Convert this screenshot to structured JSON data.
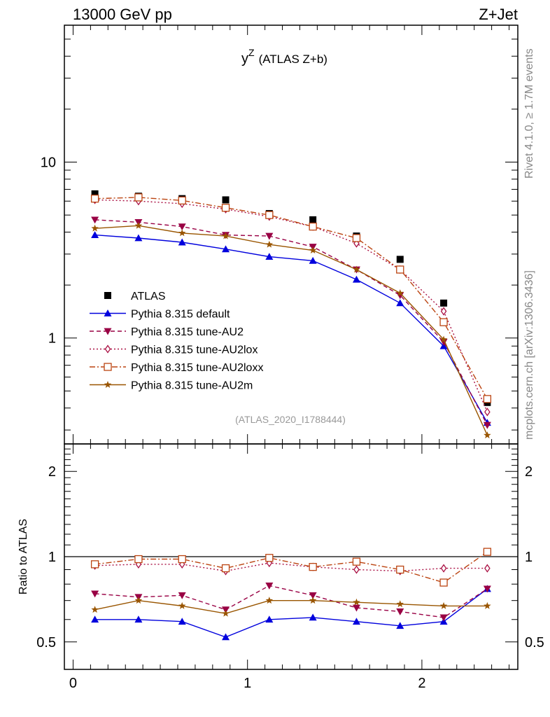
{
  "header": {
    "energy_label": "13000 GeV pp",
    "process_label": "Z+Jet"
  },
  "side_labels": {
    "rivet": "Rivet 4.1.0, ≥ 1.7M events",
    "source": "mcplots.cern.ch [arXiv:1306.3436]"
  },
  "main_plot": {
    "title_base": "y",
    "title_sup": "Z",
    "title_rest": "(ATLAS Z+b)",
    "analysis_id": "(ATLAS_2020_I1788444)"
  },
  "ratio_plot": {
    "ylabel": "Ratio to ATLAS"
  },
  "colors": {
    "atlas": "#000000",
    "default": "#0000dd",
    "au2": "#990044",
    "au2lox": "#aa1144",
    "au2loxx": "#bb4411",
    "au2m": "#995500"
  },
  "chart_data": {
    "type": "line",
    "x": [
      0.125,
      0.375,
      0.625,
      0.875,
      1.125,
      1.375,
      1.625,
      1.875,
      2.125,
      2.375
    ],
    "xlim": [
      -0.05,
      2.55
    ],
    "xticks": [
      0,
      1,
      2
    ],
    "tick_labels": {
      "x": [
        "0",
        "1",
        "2"
      ],
      "main_y": [
        "1",
        "10"
      ],
      "ratio_y": [
        "0.5",
        "1",
        "2"
      ]
    },
    "main_ylim": [
      0.25,
      60
    ],
    "main_yscale": "log",
    "ratio_ylim": [
      0.4,
      2.5
    ],
    "ratio_yscale": "log",
    "reference_line": 1,
    "legend_position": "lower-left",
    "series": [
      {
        "key": "atlas",
        "name": "ATLAS",
        "marker": "square",
        "line": "none",
        "values": [
          6.6,
          6.4,
          6.2,
          6.1,
          5.1,
          4.7,
          3.8,
          2.8,
          1.58,
          0.43
        ],
        "ratio": [
          1,
          1,
          1,
          1,
          1,
          1,
          1,
          1,
          1,
          1
        ]
      },
      {
        "key": "default",
        "name": "Pythia 8.315 default",
        "marker": "triangle-up",
        "line": "solid",
        "values": [
          3.85,
          3.7,
          3.5,
          3.2,
          2.9,
          2.75,
          2.15,
          1.58,
          0.9,
          0.33
        ],
        "ratio": [
          0.6,
          0.6,
          0.59,
          0.52,
          0.6,
          0.61,
          0.59,
          0.57,
          0.59,
          0.77
        ]
      },
      {
        "key": "au2",
        "name": "Pythia 8.315 tune-AU2",
        "marker": "triangle-down",
        "line": "dashed",
        "values": [
          4.7,
          4.55,
          4.3,
          3.85,
          3.8,
          3.3,
          2.45,
          1.75,
          0.95,
          0.32
        ],
        "ratio": [
          0.74,
          0.72,
          0.73,
          0.65,
          0.79,
          0.73,
          0.66,
          0.64,
          0.61,
          0.77
        ]
      },
      {
        "key": "au2lox",
        "name": "Pythia 8.315 tune-AU2lox",
        "marker": "diamond-open",
        "line": "dotted",
        "values": [
          6.1,
          6.0,
          5.8,
          5.4,
          4.9,
          4.3,
          3.45,
          2.45,
          1.42,
          0.38
        ],
        "ratio": [
          0.93,
          0.94,
          0.94,
          0.89,
          0.95,
          0.92,
          0.9,
          0.89,
          0.91,
          0.91
        ]
      },
      {
        "key": "au2loxx",
        "name": "Pythia 8.315 tune-AU2loxx",
        "marker": "square-open",
        "line": "dashdot",
        "values": [
          6.2,
          6.3,
          6.05,
          5.5,
          5.0,
          4.3,
          3.7,
          2.45,
          1.23,
          0.45
        ],
        "ratio": [
          0.94,
          0.98,
          0.98,
          0.91,
          0.99,
          0.92,
          0.96,
          0.9,
          0.81,
          1.04
        ]
      },
      {
        "key": "au2m",
        "name": "Pythia 8.315 tune-AU2m",
        "marker": "star",
        "line": "solid",
        "values": [
          4.2,
          4.35,
          3.95,
          3.8,
          3.4,
          3.15,
          2.45,
          1.8,
          0.98,
          0.28
        ],
        "ratio": [
          0.65,
          0.7,
          0.67,
          0.63,
          0.7,
          0.7,
          0.69,
          0.68,
          0.67,
          0.67
        ]
      }
    ]
  }
}
